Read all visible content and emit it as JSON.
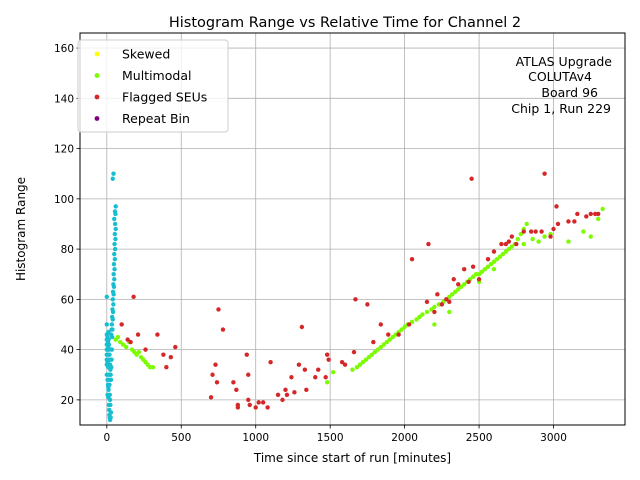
{
  "chart_data": {
    "type": "scatter",
    "title": "Histogram Range vs Relative Time for Channel 2",
    "xlabel": "Time since start of run [minutes]",
    "ylabel": "Histogram Range",
    "xlim": [
      -180,
      3480
    ],
    "ylim": [
      10,
      166
    ],
    "xticks": [
      0,
      500,
      1000,
      1500,
      2000,
      2500,
      3000
    ],
    "yticks": [
      20,
      40,
      60,
      80,
      100,
      120,
      140,
      160
    ],
    "grid": true,
    "legend_position": "top-left",
    "annotation": [
      "ATLAS Upgrade",
      "COLUTAv4",
      "Board 96",
      "Chip 1, Run 229"
    ],
    "series": [
      {
        "name": "Skewed",
        "color": "#ffff00",
        "in_legend": true,
        "points": []
      },
      {
        "name": "Multimodal",
        "color": "#7cfc00",
        "in_legend": true,
        "points": [
          [
            60,
            44
          ],
          [
            75,
            45
          ],
          [
            90,
            43
          ],
          [
            110,
            42
          ],
          [
            130,
            41
          ],
          [
            150,
            43
          ],
          [
            170,
            40
          ],
          [
            185,
            39
          ],
          [
            200,
            38
          ],
          [
            215,
            39
          ],
          [
            230,
            37
          ],
          [
            245,
            36
          ],
          [
            260,
            35
          ],
          [
            275,
            34
          ],
          [
            290,
            33
          ],
          [
            310,
            33
          ],
          [
            1480,
            27
          ],
          [
            1520,
            31
          ],
          [
            1650,
            32
          ],
          [
            1680,
            33
          ],
          [
            1700,
            34
          ],
          [
            1720,
            35
          ],
          [
            1740,
            36
          ],
          [
            1760,
            37
          ],
          [
            1780,
            38
          ],
          [
            1800,
            39
          ],
          [
            1820,
            40
          ],
          [
            1840,
            41
          ],
          [
            1860,
            42
          ],
          [
            1880,
            43
          ],
          [
            1900,
            44
          ],
          [
            1920,
            45
          ],
          [
            1940,
            46
          ],
          [
            1960,
            47
          ],
          [
            1980,
            48
          ],
          [
            2000,
            49
          ],
          [
            2020,
            50
          ],
          [
            2050,
            51
          ],
          [
            2080,
            52
          ],
          [
            2100,
            53
          ],
          [
            2120,
            54
          ],
          [
            2150,
            55
          ],
          [
            2180,
            56
          ],
          [
            2200,
            57
          ],
          [
            2230,
            58
          ],
          [
            2260,
            59
          ],
          [
            2280,
            60
          ],
          [
            2300,
            61
          ],
          [
            2320,
            62
          ],
          [
            2340,
            63
          ],
          [
            2360,
            64
          ],
          [
            2380,
            65
          ],
          [
            2400,
            66
          ],
          [
            2420,
            67
          ],
          [
            2440,
            68
          ],
          [
            2460,
            69
          ],
          [
            2480,
            70
          ],
          [
            2500,
            70
          ],
          [
            2520,
            71
          ],
          [
            2540,
            72
          ],
          [
            2560,
            73
          ],
          [
            2580,
            74
          ],
          [
            2600,
            75
          ],
          [
            2620,
            76
          ],
          [
            2640,
            77
          ],
          [
            2660,
            78
          ],
          [
            2680,
            79
          ],
          [
            2700,
            80
          ],
          [
            2720,
            81
          ],
          [
            2740,
            82
          ],
          [
            2760,
            84
          ],
          [
            2780,
            86
          ],
          [
            2800,
            88
          ],
          [
            2820,
            90
          ],
          [
            2860,
            84
          ],
          [
            2900,
            83
          ],
          [
            2940,
            85
          ],
          [
            2980,
            86
          ],
          [
            3100,
            83
          ],
          [
            3200,
            87
          ],
          [
            3250,
            85
          ],
          [
            3300,
            92
          ],
          [
            3330,
            96
          ],
          [
            2200,
            50
          ],
          [
            2300,
            55
          ],
          [
            2500,
            67
          ],
          [
            2600,
            72
          ],
          [
            2800,
            82
          ]
        ]
      },
      {
        "name": "Flagged SEUs",
        "color": "#d62728",
        "in_legend": true,
        "points": [
          [
            100,
            50
          ],
          [
            140,
            44
          ],
          [
            160,
            43
          ],
          [
            180,
            61
          ],
          [
            210,
            46
          ],
          [
            260,
            40
          ],
          [
            340,
            46
          ],
          [
            380,
            38
          ],
          [
            400,
            33
          ],
          [
            430,
            37
          ],
          [
            460,
            41
          ],
          [
            700,
            21
          ],
          [
            710,
            30
          ],
          [
            730,
            34
          ],
          [
            740,
            27
          ],
          [
            750,
            56
          ],
          [
            780,
            48
          ],
          [
            850,
            27
          ],
          [
            870,
            24
          ],
          [
            880,
            18
          ],
          [
            880,
            17
          ],
          [
            940,
            38
          ],
          [
            950,
            30
          ],
          [
            950,
            20
          ],
          [
            960,
            18
          ],
          [
            1000,
            17
          ],
          [
            1020,
            19
          ],
          [
            1050,
            19
          ],
          [
            1080,
            17
          ],
          [
            1100,
            35
          ],
          [
            1150,
            22
          ],
          [
            1180,
            20
          ],
          [
            1200,
            24
          ],
          [
            1210,
            22
          ],
          [
            1240,
            29
          ],
          [
            1260,
            23
          ],
          [
            1290,
            34
          ],
          [
            1310,
            49
          ],
          [
            1330,
            32
          ],
          [
            1340,
            24
          ],
          [
            1400,
            29
          ],
          [
            1420,
            32
          ],
          [
            1470,
            29
          ],
          [
            1480,
            38
          ],
          [
            1490,
            36
          ],
          [
            1580,
            35
          ],
          [
            1600,
            34
          ],
          [
            1660,
            39
          ],
          [
            1670,
            60
          ],
          [
            1750,
            58
          ],
          [
            1790,
            43
          ],
          [
            1840,
            50
          ],
          [
            1890,
            46
          ],
          [
            1960,
            46
          ],
          [
            2030,
            50
          ],
          [
            2050,
            76
          ],
          [
            2150,
            59
          ],
          [
            2160,
            82
          ],
          [
            2200,
            55
          ],
          [
            2220,
            62
          ],
          [
            2250,
            58
          ],
          [
            2280,
            60
          ],
          [
            2300,
            59
          ],
          [
            2330,
            68
          ],
          [
            2360,
            66
          ],
          [
            2400,
            72
          ],
          [
            2430,
            67
          ],
          [
            2450,
            108
          ],
          [
            2460,
            73
          ],
          [
            2500,
            68
          ],
          [
            2560,
            76
          ],
          [
            2600,
            79
          ],
          [
            2650,
            82
          ],
          [
            2680,
            82
          ],
          [
            2700,
            83
          ],
          [
            2720,
            85
          ],
          [
            2750,
            82
          ],
          [
            2800,
            87
          ],
          [
            2850,
            87
          ],
          [
            2880,
            87
          ],
          [
            2920,
            87
          ],
          [
            2940,
            110
          ],
          [
            2980,
            85
          ],
          [
            3000,
            88
          ],
          [
            3020,
            97
          ],
          [
            3030,
            90
          ],
          [
            3100,
            91
          ],
          [
            3140,
            91
          ],
          [
            3160,
            94
          ],
          [
            3220,
            93
          ],
          [
            3250,
            94
          ],
          [
            3280,
            94
          ],
          [
            3300,
            94
          ]
        ]
      },
      {
        "name": "Repeat Bin",
        "color": "#800080",
        "in_legend": true,
        "points": []
      },
      {
        "name": "Unlabeled (cyan)",
        "color": "#17becf",
        "in_legend": false,
        "points": [
          [
            0,
            61
          ],
          [
            0,
            50
          ],
          [
            0,
            46
          ],
          [
            0,
            44
          ],
          [
            0,
            42
          ],
          [
            0,
            40
          ],
          [
            0,
            38
          ],
          [
            0,
            36
          ],
          [
            0,
            34
          ],
          [
            0,
            30
          ],
          [
            5,
            45
          ],
          [
            5,
            40
          ],
          [
            5,
            35
          ],
          [
            5,
            28
          ],
          [
            5,
            22
          ],
          [
            8,
            43
          ],
          [
            8,
            38
          ],
          [
            8,
            26
          ],
          [
            10,
            47
          ],
          [
            10,
            41
          ],
          [
            10,
            33
          ],
          [
            10,
            25
          ],
          [
            10,
            21
          ],
          [
            12,
            44
          ],
          [
            12,
            36
          ],
          [
            12,
            24
          ],
          [
            14,
            42
          ],
          [
            14,
            30
          ],
          [
            14,
            18
          ],
          [
            16,
            40
          ],
          [
            16,
            28
          ],
          [
            16,
            16
          ],
          [
            18,
            38
          ],
          [
            18,
            26
          ],
          [
            18,
            14
          ],
          [
            20,
            36
          ],
          [
            20,
            22
          ],
          [
            20,
            13
          ],
          [
            22,
            34
          ],
          [
            22,
            20
          ],
          [
            22,
            12
          ],
          [
            24,
            32
          ],
          [
            24,
            18
          ],
          [
            26,
            30
          ],
          [
            26,
            13
          ],
          [
            28,
            28
          ],
          [
            28,
            15
          ],
          [
            30,
            46
          ],
          [
            30,
            33
          ],
          [
            32,
            48
          ],
          [
            32,
            36
          ],
          [
            34,
            50
          ],
          [
            34,
            40
          ],
          [
            36,
            53
          ],
          [
            36,
            45
          ],
          [
            38,
            56
          ],
          [
            38,
            48
          ],
          [
            40,
            60
          ],
          [
            40,
            52
          ],
          [
            42,
            63
          ],
          [
            42,
            55
          ],
          [
            44,
            66
          ],
          [
            44,
            58
          ],
          [
            46,
            70
          ],
          [
            46,
            62
          ],
          [
            48,
            74
          ],
          [
            48,
            65
          ],
          [
            50,
            78
          ],
          [
            50,
            68
          ],
          [
            52,
            82
          ],
          [
            52,
            72
          ],
          [
            54,
            86
          ],
          [
            54,
            76
          ],
          [
            56,
            90
          ],
          [
            56,
            80
          ],
          [
            58,
            94
          ],
          [
            58,
            84
          ],
          [
            60,
            97
          ],
          [
            60,
            88
          ],
          [
            40,
            108
          ],
          [
            45,
            110
          ],
          [
            50,
            92
          ],
          [
            55,
            95
          ]
        ]
      }
    ]
  }
}
